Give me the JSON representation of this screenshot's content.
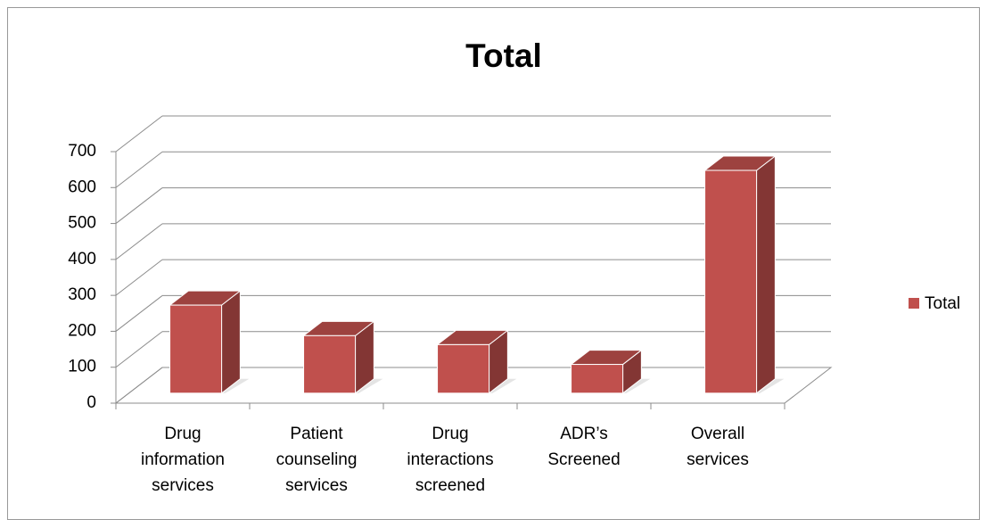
{
  "chart_data": {
    "type": "bar3d",
    "title": "Total",
    "categories": [
      "Drug information services",
      "Patient counseling services",
      "Drug interactions screened",
      "ADR’s Screened",
      "Overall services"
    ],
    "series": [
      {
        "name": "Total",
        "color": "#c0504d",
        "values": [
          245,
          160,
          135,
          80,
          620
        ]
      }
    ],
    "ylim": [
      0,
      700
    ],
    "yticks": [
      0,
      100,
      200,
      300,
      400,
      500,
      600,
      700
    ],
    "grid": true,
    "legend": "right"
  }
}
